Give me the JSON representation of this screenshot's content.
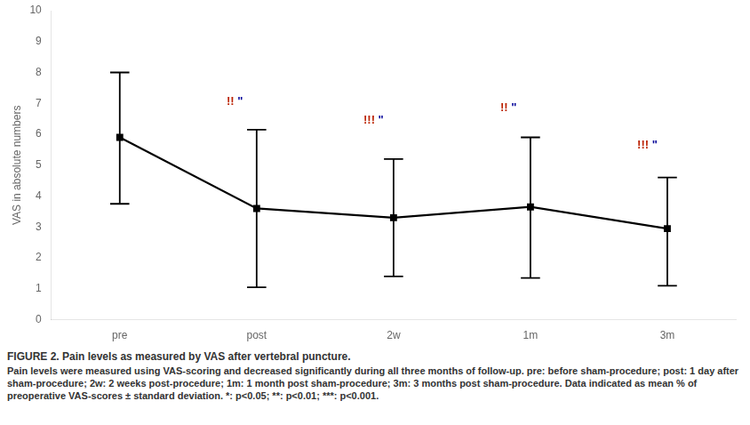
{
  "chart_data": {
    "type": "line",
    "title": "FIGURE 2. Pain levels as measured by VAS after vertebral puncture.",
    "caption": "Pain levels were measured using VAS-scoring and decreased significantly during all three months of follow-up. pre: before sham-procedure; post: 1 day after sham-procedure; 2w: 2 weeks post-procedure; 1m: 1 month post sham-procedure; 3m: 3 months post sham-procedure. Data indicated as mean % of preoperative VAS-scores ± standard deviation. *: p<0.05; **: p<0.01; ***: p<0.001.",
    "ylabel": "VAS in absolute numbers",
    "categories": [
      "pre",
      "post",
      "2w",
      "1m",
      "3m"
    ],
    "values": [
      5.9,
      3.6,
      3.3,
      3.65,
      2.95
    ],
    "error_high": [
      8.0,
      6.15,
      5.2,
      5.9,
      4.6
    ],
    "error_low": [
      3.75,
      1.05,
      1.4,
      1.35,
      1.1
    ],
    "color": "#000000",
    "marker": "square",
    "annotations": [
      {
        "x": "post",
        "y": 7.05,
        "texts": [
          {
            "text": "!!",
            "color": "#bb2200"
          },
          {
            "text": "\"",
            "color": "#000099"
          }
        ]
      },
      {
        "x": "2w",
        "y": 6.45,
        "texts": [
          {
            "text": "!!!",
            "color": "#bb2200"
          },
          {
            "text": "\"",
            "color": "#000099"
          }
        ]
      },
      {
        "x": "1m",
        "y": 6.85,
        "texts": [
          {
            "text": "!!",
            "color": "#bb2200"
          },
          {
            "text": "\"",
            "color": "#000099"
          }
        ]
      },
      {
        "x": "3m",
        "y": 5.65,
        "texts": [
          {
            "text": "!!!",
            "color": "#bb2200"
          },
          {
            "text": "\"",
            "color": "#000099"
          }
        ]
      }
    ],
    "ylim": [
      0,
      10
    ],
    "yticks": [
      0,
      1,
      2,
      3,
      4,
      5,
      6,
      7,
      8,
      9,
      10
    ],
    "grid": false
  }
}
